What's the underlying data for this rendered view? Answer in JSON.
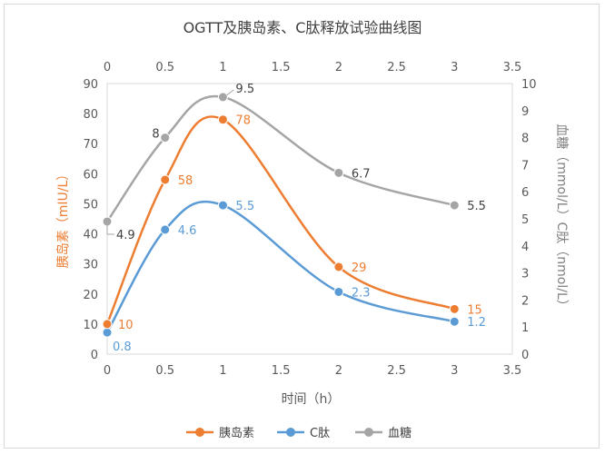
{
  "chart_data": {
    "type": "line",
    "title": "OGTT及胰岛素、C肽释放试验曲线图",
    "xlabel": "时间（h）",
    "xlim": [
      0,
      3.5
    ],
    "xticks": [
      "0",
      "0.5",
      "1",
      "1.5",
      "2",
      "2.5",
      "3",
      "3.5"
    ],
    "y_left": {
      "label": "胰岛素（mIU/L）",
      "lim": [
        0,
        90
      ],
      "ticks": [
        "0",
        "10",
        "20",
        "30",
        "40",
        "50",
        "60",
        "70",
        "80",
        "90"
      ]
    },
    "y_right": {
      "label": "血糖（mmol/L）C肽（nmol/L）",
      "lim": [
        0,
        10
      ],
      "ticks": [
        "0",
        "1",
        "2",
        "3",
        "4",
        "5",
        "6",
        "7",
        "8",
        "9",
        "10"
      ]
    },
    "x": [
      0,
      0.5,
      1,
      2,
      3
    ],
    "series": [
      {
        "name": "胰岛素",
        "axis": "left",
        "color": "#ED7D31",
        "values": [
          10,
          58,
          78,
          29,
          15
        ],
        "labels": [
          "10",
          "58",
          "78",
          "29",
          "15"
        ]
      },
      {
        "name": "C肽",
        "axis": "right",
        "color": "#5B9BD5",
        "values": [
          0.8,
          4.6,
          5.5,
          2.3,
          1.2
        ],
        "labels": [
          "0.8",
          "4.6",
          "5.5",
          "2.3",
          "1.2"
        ]
      },
      {
        "name": "血糖",
        "axis": "right",
        "color": "#A5A5A5",
        "values": [
          4.9,
          8,
          9.5,
          6.7,
          5.5
        ],
        "labels": [
          "4.9",
          "8",
          "9.5",
          "6.7",
          "5.5"
        ]
      }
    ],
    "grid": false,
    "legend": "bottom"
  }
}
